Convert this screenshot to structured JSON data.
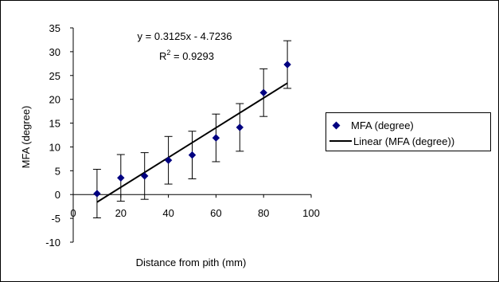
{
  "chart_data": {
    "type": "scatter",
    "title": "",
    "xlabel": "Distance from pith (mm)",
    "ylabel": "MFA (degree)",
    "xlim": [
      0,
      100
    ],
    "ylim": [
      -10,
      35
    ],
    "x_ticks": [
      "0",
      "20",
      "40",
      "60",
      "80",
      "100"
    ],
    "y_ticks": [
      "35",
      "30",
      "25",
      "20",
      "15",
      "10",
      "5",
      "0",
      "-5",
      "-10"
    ],
    "grid": false,
    "legend_position": "right",
    "series": [
      {
        "name": "MFA (degree)",
        "x": [
          10,
          20,
          30,
          40,
          50,
          60,
          70,
          80,
          90
        ],
        "y": [
          0.2,
          3.5,
          3.9,
          7.2,
          8.3,
          11.9,
          14.1,
          21.4,
          27.3
        ],
        "error": [
          5.1,
          4.9,
          4.9,
          5.0,
          5.0,
          5.0,
          5.0,
          5.0,
          5.0
        ],
        "marker": "diamond",
        "color": "#000080"
      },
      {
        "name": "Linear (MFA (degree))",
        "type": "trendline",
        "slope": 0.3125,
        "intercept": -4.7236,
        "x_range": [
          10,
          90
        ],
        "color": "#000000"
      }
    ],
    "annotations": {
      "equation": "y = 0.3125x - 4.7236",
      "r2_prefix": "R",
      "r2_sup": "2",
      "r2_value": " = 0.9293"
    }
  }
}
